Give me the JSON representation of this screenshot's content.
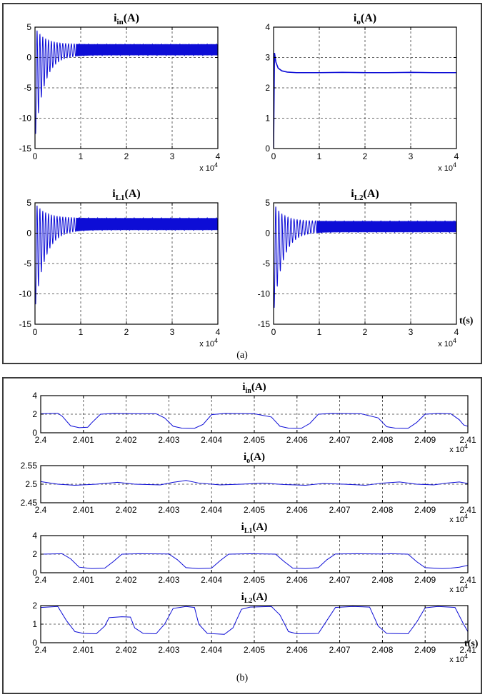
{
  "colors": {
    "trace": "#0d0dd6",
    "grid": "#3a3a3a",
    "box": "#000000",
    "text": "#000000"
  },
  "panels": {
    "a": {
      "caption": "(a)",
      "t_label": "t(s)"
    },
    "b": {
      "caption": "(b)",
      "t_label": "t(s)"
    }
  },
  "chart_data": [
    {
      "id": "a1",
      "panel": "a",
      "type": "line",
      "title": {
        "base": "i",
        "sub": "in",
        "post": "(A)"
      },
      "xlabel": "",
      "ylabel": "",
      "xlim": [
        0,
        4
      ],
      "xticks": [
        0,
        1,
        2,
        3,
        4
      ],
      "ylim": [
        -15,
        5
      ],
      "yticks": [
        5,
        0,
        -5,
        -10,
        -15
      ],
      "x_exp": {
        "text": "x 10",
        "sup": "4"
      },
      "grid": true,
      "legend": "none",
      "series": {
        "kind": "damped_band",
        "freq": 16,
        "dense_freq": 55,
        "dense_from": 0.9,
        "decay": 0.2,
        "env_hi0": 5,
        "env_lo0": -13.5,
        "steady_hi": 2.2,
        "steady_lo": 0.35,
        "width": 1
      }
    },
    {
      "id": "a2",
      "panel": "a",
      "type": "line",
      "title": {
        "base": "i",
        "sub": "o",
        "post": "(A)"
      },
      "xlim": [
        0,
        4
      ],
      "xticks": [
        0,
        1,
        2,
        3,
        4
      ],
      "ylim": [
        0,
        4
      ],
      "yticks": [
        4,
        3,
        2,
        1,
        0
      ],
      "x_exp": {
        "text": "x 10",
        "sup": "4"
      },
      "grid": true,
      "legend": "none",
      "series": {
        "kind": "points",
        "width": 1.6,
        "data": [
          [
            0,
            0
          ],
          [
            0.02,
            3.15
          ],
          [
            0.05,
            2.85
          ],
          [
            0.1,
            2.65
          ],
          [
            0.18,
            2.56
          ],
          [
            0.3,
            2.52
          ],
          [
            0.5,
            2.5
          ],
          [
            1.0,
            2.5
          ],
          [
            1.5,
            2.51
          ],
          [
            2.0,
            2.5
          ],
          [
            2.5,
            2.5
          ],
          [
            3.0,
            2.51
          ],
          [
            3.5,
            2.5
          ],
          [
            4.0,
            2.5
          ]
        ]
      }
    },
    {
      "id": "a3",
      "panel": "a",
      "type": "line",
      "title": {
        "base": "i",
        "sub": "L1",
        "post": "(A)"
      },
      "xlim": [
        0,
        4
      ],
      "xticks": [
        0,
        1,
        2,
        3,
        4
      ],
      "ylim": [
        -15,
        5
      ],
      "yticks": [
        5,
        0,
        -5,
        -10,
        -15
      ],
      "x_exp": {
        "text": "x 10",
        "sup": "4"
      },
      "grid": true,
      "legend": "none",
      "series": {
        "kind": "damped_band",
        "freq": 16,
        "dense_freq": 55,
        "dense_from": 0.9,
        "decay": 0.22,
        "env_hi0": 5,
        "env_lo0": -12.5,
        "steady_hi": 2.5,
        "steady_lo": 0.5,
        "width": 1
      }
    },
    {
      "id": "a4",
      "panel": "a",
      "type": "line",
      "title": {
        "base": "i",
        "sub": "L2",
        "post": "(A)"
      },
      "xlim": [
        0,
        4
      ],
      "xticks": [
        0,
        1,
        2,
        3,
        4
      ],
      "ylim": [
        -15,
        5
      ],
      "yticks": [
        5,
        0,
        -5,
        -10,
        -15
      ],
      "x_exp": {
        "text": "x 10",
        "sup": "4"
      },
      "grid": true,
      "legend": "none",
      "series": {
        "kind": "damped_band",
        "freq": 15,
        "dense_freq": 55,
        "dense_from": 0.95,
        "decay": 0.2,
        "env_hi0": 5,
        "env_lo0": -13.2,
        "steady_hi": 2.0,
        "steady_lo": 0.15,
        "width": 1
      }
    },
    {
      "id": "b1",
      "panel": "b",
      "type": "line",
      "title": {
        "base": "i",
        "sub": "in",
        "post": "(A)"
      },
      "xlim": [
        2.4,
        2.41
      ],
      "xticks": [
        2.4,
        2.401,
        2.402,
        2.403,
        2.404,
        2.405,
        2.406,
        2.407,
        2.408,
        2.409,
        2.41
      ],
      "ylim": [
        0,
        4
      ],
      "yticks": [
        4,
        2,
        0
      ],
      "x_exp": {
        "text": "x 10",
        "sup": "4"
      },
      "grid": true,
      "legend": "none",
      "series": {
        "kind": "points",
        "width": 1,
        "data": [
          [
            2.4,
            2.05
          ],
          [
            2.4004,
            2.1
          ],
          [
            2.4005,
            1.8
          ],
          [
            2.4007,
            0.75
          ],
          [
            2.4009,
            0.55
          ],
          [
            2.4011,
            0.6
          ],
          [
            2.4012,
            1.1
          ],
          [
            2.4014,
            2.0
          ],
          [
            2.4017,
            2.08
          ],
          [
            2.4022,
            2.05
          ],
          [
            2.4027,
            2.05
          ],
          [
            2.4029,
            1.6
          ],
          [
            2.4031,
            0.7
          ],
          [
            2.4033,
            0.5
          ],
          [
            2.4036,
            0.48
          ],
          [
            2.4038,
            0.9
          ],
          [
            2.404,
            1.95
          ],
          [
            2.4043,
            2.08
          ],
          [
            2.405,
            2.05
          ],
          [
            2.4054,
            1.7
          ],
          [
            2.4056,
            0.7
          ],
          [
            2.4058,
            0.5
          ],
          [
            2.4061,
            0.48
          ],
          [
            2.4063,
            1.0
          ],
          [
            2.4065,
            2.0
          ],
          [
            2.4068,
            2.08
          ],
          [
            2.4075,
            2.05
          ],
          [
            2.4079,
            1.6
          ],
          [
            2.4081,
            0.65
          ],
          [
            2.4083,
            0.5
          ],
          [
            2.4086,
            0.48
          ],
          [
            2.4088,
            1.1
          ],
          [
            2.409,
            2.0
          ],
          [
            2.4093,
            2.08
          ],
          [
            2.4096,
            2.05
          ],
          [
            2.4098,
            1.4
          ],
          [
            2.4099,
            0.85
          ],
          [
            2.41,
            0.7
          ]
        ]
      }
    },
    {
      "id": "b2",
      "panel": "b",
      "type": "line",
      "title": {
        "base": "i",
        "sub": "o",
        "post": "(A)"
      },
      "xlim": [
        2.4,
        2.41
      ],
      "xticks": [
        2.4,
        2.401,
        2.402,
        2.403,
        2.404,
        2.405,
        2.406,
        2.407,
        2.408,
        2.409,
        2.41
      ],
      "ylim": [
        2.45,
        2.55
      ],
      "yticks": [
        2.55,
        2.5,
        2.45
      ],
      "x_exp": {
        "text": "x 10",
        "sup": "4"
      },
      "grid": true,
      "legend": "none",
      "series": {
        "kind": "points",
        "width": 1,
        "data": [
          [
            2.4,
            2.507
          ],
          [
            2.4004,
            2.5
          ],
          [
            2.4008,
            2.497
          ],
          [
            2.4013,
            2.5
          ],
          [
            2.4018,
            2.505
          ],
          [
            2.4022,
            2.5
          ],
          [
            2.4028,
            2.498
          ],
          [
            2.4031,
            2.505
          ],
          [
            2.4034,
            2.51
          ],
          [
            2.4037,
            2.503
          ],
          [
            2.4042,
            2.498
          ],
          [
            2.4047,
            2.5
          ],
          [
            2.4052,
            2.503
          ],
          [
            2.4057,
            2.499
          ],
          [
            2.4062,
            2.497
          ],
          [
            2.4066,
            2.502
          ],
          [
            2.4071,
            2.5
          ],
          [
            2.4076,
            2.497
          ],
          [
            2.408,
            2.503
          ],
          [
            2.4084,
            2.506
          ],
          [
            2.4088,
            2.5
          ],
          [
            2.4092,
            2.498
          ],
          [
            2.4095,
            2.503
          ],
          [
            2.4098,
            2.506
          ],
          [
            2.41,
            2.502
          ]
        ]
      }
    },
    {
      "id": "b3",
      "panel": "b",
      "type": "line",
      "title": {
        "base": "i",
        "sub": "L1",
        "post": "(A)"
      },
      "xlim": [
        2.4,
        2.41
      ],
      "xticks": [
        2.4,
        2.401,
        2.402,
        2.403,
        2.404,
        2.405,
        2.406,
        2.407,
        2.408,
        2.409,
        2.41
      ],
      "ylim": [
        0,
        4
      ],
      "yticks": [
        4,
        2,
        0
      ],
      "x_exp": {
        "text": "x 10",
        "sup": "4"
      },
      "grid": true,
      "legend": "none",
      "series": {
        "kind": "points",
        "width": 1,
        "data": [
          [
            2.4,
            2.0
          ],
          [
            2.4005,
            2.05
          ],
          [
            2.4007,
            1.5
          ],
          [
            2.4009,
            0.6
          ],
          [
            2.4012,
            0.45
          ],
          [
            2.4015,
            0.5
          ],
          [
            2.4017,
            1.2
          ],
          [
            2.4019,
            2.0
          ],
          [
            2.4023,
            2.05
          ],
          [
            2.403,
            2.02
          ],
          [
            2.4032,
            1.4
          ],
          [
            2.4034,
            0.55
          ],
          [
            2.4037,
            0.45
          ],
          [
            2.404,
            0.5
          ],
          [
            2.4042,
            1.3
          ],
          [
            2.4044,
            2.0
          ],
          [
            2.4049,
            2.05
          ],
          [
            2.4055,
            2.0
          ],
          [
            2.4057,
            1.2
          ],
          [
            2.4059,
            0.5
          ],
          [
            2.4062,
            0.45
          ],
          [
            2.4065,
            0.55
          ],
          [
            2.4067,
            1.4
          ],
          [
            2.4069,
            2.02
          ],
          [
            2.4074,
            2.05
          ],
          [
            2.408,
            2.02
          ],
          [
            2.4082,
            2.05
          ],
          [
            2.4086,
            2.0
          ],
          [
            2.4088,
            1.2
          ],
          [
            2.409,
            0.55
          ],
          [
            2.4094,
            0.45
          ],
          [
            2.4096,
            0.5
          ],
          [
            2.4098,
            0.6
          ],
          [
            2.41,
            0.8
          ]
        ]
      }
    },
    {
      "id": "b4",
      "panel": "b",
      "type": "line",
      "title": {
        "base": "i",
        "sub": "L2",
        "post": "(A)"
      },
      "xlim": [
        2.4,
        2.41
      ],
      "xticks": [
        2.4,
        2.401,
        2.402,
        2.403,
        2.404,
        2.405,
        2.406,
        2.407,
        2.408,
        2.409,
        2.41
      ],
      "ylim": [
        0,
        2
      ],
      "yticks": [
        2,
        1,
        0
      ],
      "x_exp": {
        "text": "x 10",
        "sup": "4"
      },
      "grid": true,
      "legend": "none",
      "series": {
        "kind": "points",
        "width": 1,
        "data": [
          [
            2.4,
            1.9
          ],
          [
            2.4004,
            1.95
          ],
          [
            2.4006,
            1.2
          ],
          [
            2.4008,
            0.6
          ],
          [
            2.401,
            0.5
          ],
          [
            2.4013,
            0.48
          ],
          [
            2.4015,
            0.9
          ],
          [
            2.4016,
            1.35
          ],
          [
            2.4019,
            1.4
          ],
          [
            2.4021,
            1.38
          ],
          [
            2.4022,
            0.8
          ],
          [
            2.4024,
            0.5
          ],
          [
            2.4027,
            0.48
          ],
          [
            2.4029,
            1.0
          ],
          [
            2.4031,
            1.85
          ],
          [
            2.4034,
            1.95
          ],
          [
            2.4036,
            1.9
          ],
          [
            2.4037,
            1.0
          ],
          [
            2.4039,
            0.5
          ],
          [
            2.4043,
            0.45
          ],
          [
            2.4045,
            0.8
          ],
          [
            2.4047,
            1.8
          ],
          [
            2.4049,
            1.92
          ],
          [
            2.4054,
            1.95
          ],
          [
            2.4056,
            1.5
          ],
          [
            2.4058,
            0.6
          ],
          [
            2.406,
            0.48
          ],
          [
            2.4065,
            0.5
          ],
          [
            2.4067,
            1.2
          ],
          [
            2.4069,
            1.9
          ],
          [
            2.4073,
            1.95
          ],
          [
            2.4077,
            1.92
          ],
          [
            2.4079,
            0.9
          ],
          [
            2.4081,
            0.5
          ],
          [
            2.4086,
            0.48
          ],
          [
            2.4088,
            1.1
          ],
          [
            2.409,
            1.88
          ],
          [
            2.4093,
            1.95
          ],
          [
            2.4097,
            1.9
          ],
          [
            2.4099,
            1.0
          ],
          [
            2.41,
            0.6
          ]
        ]
      }
    }
  ]
}
